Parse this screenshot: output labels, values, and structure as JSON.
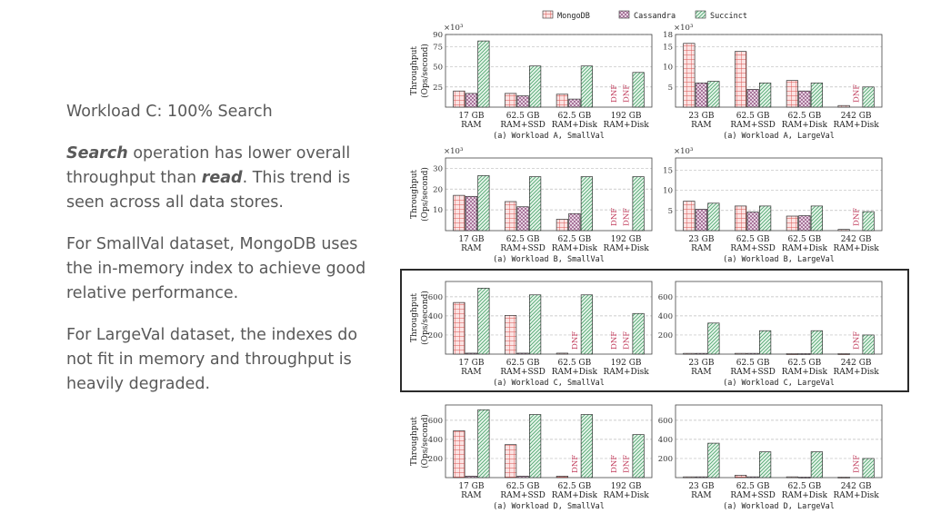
{
  "slide": {
    "heading": "Workload C: 100% Search",
    "p1": {
      "em1": "Search",
      "t1": " operation has lower overall throughput than ",
      "em2": "read",
      "t2": ". This trend is seen across all data stores."
    },
    "p2": "For SmallVal dataset, MongoDB uses the in-memory index to achieve good relative performance.",
    "p3": "For LargeVal dataset, the indexes do not fit in memory and throughput is heavily degraded."
  },
  "colors": {
    "MongoDB": "#d9534f",
    "Cassandra": "#8e4e7e",
    "Succinct": "#49a26a",
    "dnf": "#c03a5a"
  },
  "chart_data": {
    "type": "bar",
    "legend": [
      "MongoDB",
      "Cassandra",
      "Succinct"
    ],
    "ylabel": "Throughput (Ops/second)",
    "dnf_label": "DNF",
    "panels": [
      {
        "title": "(a) Workload A, SmallVal",
        "multiplier": "×10³",
        "ylim": [
          0,
          90
        ],
        "ticks": [
          25,
          50,
          75,
          90
        ],
        "categories": [
          [
            "17 GB",
            "RAM"
          ],
          [
            "62.5 GB",
            "RAM+SSD"
          ],
          [
            "62.5 GB",
            "RAM+Disk"
          ],
          [
            "192 GB",
            "RAM+Disk"
          ]
        ],
        "series": [
          {
            "name": "MongoDB",
            "values": [
              20,
              17,
              16,
              null
            ]
          },
          {
            "name": "Cassandra",
            "values": [
              17,
              14,
              10,
              null
            ]
          },
          {
            "name": "Succinct",
            "values": [
              82,
              51,
              51,
              43
            ]
          }
        ]
      },
      {
        "title": "(a) Workload A, LargeVal",
        "multiplier": "×10³",
        "ylim": [
          0,
          18
        ],
        "ticks": [
          5,
          10,
          15,
          18
        ],
        "categories": [
          [
            "23 GB",
            "RAM"
          ],
          [
            "62.5 GB",
            "RAM+SSD"
          ],
          [
            "62.5 GB",
            "RAM+Disk"
          ],
          [
            "242 GB",
            "RAM+Disk"
          ]
        ],
        "series": [
          {
            "name": "MongoDB",
            "values": [
              15.8,
              13.8,
              6.6,
              0.4
            ]
          },
          {
            "name": "Cassandra",
            "values": [
              6,
              4.4,
              4,
              null
            ]
          },
          {
            "name": "Succinct",
            "values": [
              6.4,
              6,
              6,
              5
            ]
          }
        ]
      },
      {
        "title": "(a) Workload B, SmallVal",
        "multiplier": "×10³",
        "ylim": [
          0,
          35
        ],
        "ticks": [
          10,
          20,
          30
        ],
        "categories": [
          [
            "17 GB",
            "RAM"
          ],
          [
            "62.5 GB",
            "RAM+SSD"
          ],
          [
            "62.5 GB",
            "RAM+Disk"
          ],
          [
            "192 GB",
            "RAM+Disk"
          ]
        ],
        "series": [
          {
            "name": "MongoDB",
            "values": [
              17,
              14,
              5.5,
              null
            ]
          },
          {
            "name": "Cassandra",
            "values": [
              16.5,
              11.5,
              8.2,
              null
            ]
          },
          {
            "name": "Succinct",
            "values": [
              26.5,
              26,
              26,
              26
            ]
          }
        ]
      },
      {
        "title": "(a) Workload B, LargeVal",
        "multiplier": "×10³",
        "ylim": [
          0,
          18
        ],
        "ticks": [
          5,
          10,
          15
        ],
        "categories": [
          [
            "23 GB",
            "RAM"
          ],
          [
            "62.5 GB",
            "RAM+SSD"
          ],
          [
            "62.5 GB",
            "RAM+Disk"
          ],
          [
            "242 GB",
            "RAM+Disk"
          ]
        ],
        "series": [
          {
            "name": "MongoDB",
            "values": [
              7.3,
              6.1,
              3.6,
              0.3
            ]
          },
          {
            "name": "Cassandra",
            "values": [
              5.3,
              4.6,
              3.7,
              null
            ]
          },
          {
            "name": "Succinct",
            "values": [
              6.8,
              6.1,
              6.1,
              4.7
            ]
          }
        ]
      },
      {
        "title": "(a) Workload C, SmallVal",
        "multiplier": "",
        "ylim": [
          0,
          760
        ],
        "ticks": [
          200,
          400,
          600
        ],
        "categories": [
          [
            "17 GB",
            "RAM"
          ],
          [
            "62.5 GB",
            "RAM+SSD"
          ],
          [
            "62.5 GB",
            "RAM+Disk"
          ],
          [
            "192 GB",
            "RAM+Disk"
          ]
        ],
        "series": [
          {
            "name": "MongoDB",
            "values": [
              540,
              405,
              10,
              null
            ]
          },
          {
            "name": "Cassandra",
            "values": [
              10,
              10,
              null,
              null
            ]
          },
          {
            "name": "Succinct",
            "values": [
              690,
              620,
              620,
              425
            ]
          }
        ]
      },
      {
        "title": "(a) Workload C, LargeVal",
        "multiplier": "",
        "ylim": [
          0,
          760
        ],
        "ticks": [
          200,
          400,
          600
        ],
        "categories": [
          [
            "23 GB",
            "RAM"
          ],
          [
            "62.5 GB",
            "RAM+SSD"
          ],
          [
            "62.5 GB",
            "RAM+Disk"
          ],
          [
            "242 GB",
            "RAM+Disk"
          ]
        ],
        "series": [
          {
            "name": "MongoDB",
            "values": [
              8,
              8,
              5,
              5
            ]
          },
          {
            "name": "Cassandra",
            "values": [
              8,
              8,
              5,
              null
            ]
          },
          {
            "name": "Succinct",
            "values": [
              325,
              245,
              245,
              200
            ]
          }
        ]
      },
      {
        "title": "(a) Workload D, SmallVal",
        "multiplier": "",
        "ylim": [
          0,
          760
        ],
        "ticks": [
          200,
          400,
          600
        ],
        "categories": [
          [
            "17 GB",
            "RAM"
          ],
          [
            "62.5 GB",
            "RAM+SSD"
          ],
          [
            "62.5 GB",
            "RAM+Disk"
          ],
          [
            "192 GB",
            "RAM+Disk"
          ]
        ],
        "series": [
          {
            "name": "MongoDB",
            "values": [
              490,
              345,
              15,
              null
            ]
          },
          {
            "name": "Cassandra",
            "values": [
              15,
              15,
              null,
              null
            ]
          },
          {
            "name": "Succinct",
            "values": [
              710,
              660,
              660,
              450
            ]
          }
        ]
      },
      {
        "title": "(a) Workload D, LargeVal",
        "multiplier": "",
        "ylim": [
          0,
          760
        ],
        "ticks": [
          200,
          400,
          600
        ],
        "categories": [
          [
            "23 GB",
            "RAM"
          ],
          [
            "62.5 GB",
            "RAM+SSD"
          ],
          [
            "62.5 GB",
            "RAM+Disk"
          ],
          [
            "242 GB",
            "RAM+Disk"
          ]
        ],
        "series": [
          {
            "name": "MongoDB",
            "values": [
              8,
              25,
              8,
              5
            ]
          },
          {
            "name": "Cassandra",
            "values": [
              8,
              8,
              5,
              null
            ]
          },
          {
            "name": "Succinct",
            "values": [
              360,
              270,
              270,
              200
            ]
          }
        ]
      }
    ]
  }
}
